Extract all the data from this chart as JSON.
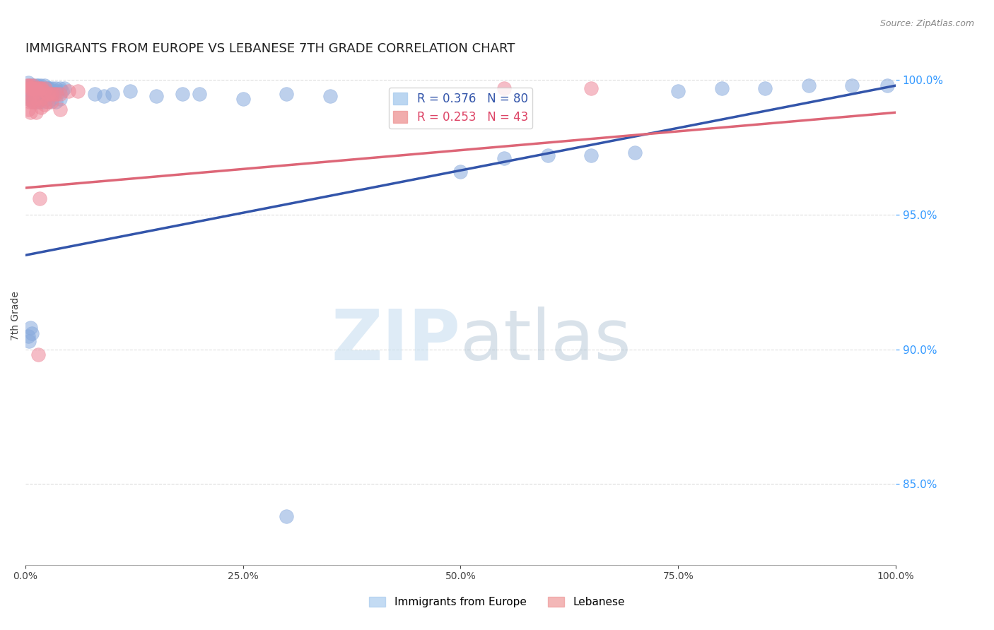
{
  "title": "IMMIGRANTS FROM EUROPE VS LEBANESE 7TH GRADE CORRELATION CHART",
  "source": "Source: ZipAtlas.com",
  "ylabel": "7th Grade",
  "right_yticks": [
    85.0,
    90.0,
    95.0,
    100.0
  ],
  "watermark_zip": "ZIP",
  "watermark_atlas": "atlas",
  "legend": [
    {
      "label": "R = 0.376   N = 80",
      "color": "#6699cc"
    },
    {
      "label": "R = 0.253   N = 43",
      "color": "#e8799a"
    }
  ],
  "blue_scatter": [
    [
      0.002,
      0.997
    ],
    [
      0.003,
      0.999
    ],
    [
      0.005,
      0.998
    ],
    [
      0.004,
      0.997
    ],
    [
      0.006,
      0.997
    ],
    [
      0.007,
      0.998
    ],
    [
      0.008,
      0.997
    ],
    [
      0.009,
      0.996
    ],
    [
      0.01,
      0.998
    ],
    [
      0.011,
      0.997
    ],
    [
      0.012,
      0.996
    ],
    [
      0.013,
      0.998
    ],
    [
      0.014,
      0.997
    ],
    [
      0.015,
      0.998
    ],
    [
      0.016,
      0.996
    ],
    [
      0.017,
      0.997
    ],
    [
      0.018,
      0.998
    ],
    [
      0.019,
      0.997
    ],
    [
      0.02,
      0.996
    ],
    [
      0.021,
      0.997
    ],
    [
      0.022,
      0.998
    ],
    [
      0.023,
      0.996
    ],
    [
      0.024,
      0.995
    ],
    [
      0.025,
      0.997
    ],
    [
      0.026,
      0.997
    ],
    [
      0.027,
      0.996
    ],
    [
      0.028,
      0.997
    ],
    [
      0.03,
      0.996
    ],
    [
      0.031,
      0.997
    ],
    [
      0.032,
      0.996
    ],
    [
      0.035,
      0.997
    ],
    [
      0.036,
      0.996
    ],
    [
      0.04,
      0.997
    ],
    [
      0.042,
      0.996
    ],
    [
      0.045,
      0.997
    ],
    [
      0.002,
      0.994
    ],
    [
      0.003,
      0.993
    ],
    [
      0.005,
      0.994
    ],
    [
      0.006,
      0.993
    ],
    [
      0.007,
      0.993
    ],
    [
      0.008,
      0.992
    ],
    [
      0.009,
      0.993
    ],
    [
      0.01,
      0.994
    ],
    [
      0.011,
      0.993
    ],
    [
      0.012,
      0.992
    ],
    [
      0.015,
      0.993
    ],
    [
      0.016,
      0.992
    ],
    [
      0.018,
      0.993
    ],
    [
      0.02,
      0.992
    ],
    [
      0.025,
      0.993
    ],
    [
      0.027,
      0.992
    ],
    [
      0.03,
      0.993
    ],
    [
      0.035,
      0.992
    ],
    [
      0.04,
      0.993
    ],
    [
      0.08,
      0.995
    ],
    [
      0.09,
      0.994
    ],
    [
      0.1,
      0.995
    ],
    [
      0.12,
      0.996
    ],
    [
      0.15,
      0.994
    ],
    [
      0.18,
      0.995
    ],
    [
      0.2,
      0.995
    ],
    [
      0.25,
      0.993
    ],
    [
      0.3,
      0.995
    ],
    [
      0.35,
      0.994
    ],
    [
      0.5,
      0.966
    ],
    [
      0.55,
      0.971
    ],
    [
      0.6,
      0.972
    ],
    [
      0.65,
      0.972
    ],
    [
      0.7,
      0.973
    ],
    [
      0.75,
      0.996
    ],
    [
      0.8,
      0.997
    ],
    [
      0.85,
      0.997
    ],
    [
      0.9,
      0.998
    ],
    [
      0.95,
      0.998
    ],
    [
      0.99,
      0.998
    ],
    [
      0.3,
      0.838
    ],
    [
      0.003,
      0.905
    ],
    [
      0.004,
      0.903
    ],
    [
      0.006,
      0.908
    ],
    [
      0.007,
      0.906
    ]
  ],
  "pink_scatter": [
    [
      0.002,
      0.998
    ],
    [
      0.003,
      0.998
    ],
    [
      0.004,
      0.997
    ],
    [
      0.005,
      0.997
    ],
    [
      0.006,
      0.998
    ],
    [
      0.007,
      0.997
    ],
    [
      0.008,
      0.997
    ],
    [
      0.009,
      0.998
    ],
    [
      0.01,
      0.997
    ],
    [
      0.012,
      0.997
    ],
    [
      0.014,
      0.996
    ],
    [
      0.015,
      0.997
    ],
    [
      0.017,
      0.997
    ],
    [
      0.019,
      0.997
    ],
    [
      0.021,
      0.996
    ],
    [
      0.023,
      0.997
    ],
    [
      0.025,
      0.995
    ],
    [
      0.027,
      0.995
    ],
    [
      0.03,
      0.995
    ],
    [
      0.033,
      0.995
    ],
    [
      0.036,
      0.995
    ],
    [
      0.04,
      0.995
    ],
    [
      0.05,
      0.996
    ],
    [
      0.06,
      0.996
    ],
    [
      0.003,
      0.993
    ],
    [
      0.005,
      0.992
    ],
    [
      0.007,
      0.993
    ],
    [
      0.009,
      0.992
    ],
    [
      0.012,
      0.993
    ],
    [
      0.015,
      0.992
    ],
    [
      0.018,
      0.993
    ],
    [
      0.022,
      0.991
    ],
    [
      0.025,
      0.992
    ],
    [
      0.03,
      0.992
    ],
    [
      0.018,
      0.99
    ],
    [
      0.003,
      0.989
    ],
    [
      0.006,
      0.988
    ],
    [
      0.012,
      0.988
    ],
    [
      0.04,
      0.989
    ],
    [
      0.016,
      0.956
    ],
    [
      0.015,
      0.898
    ],
    [
      0.55,
      0.997
    ],
    [
      0.65,
      0.997
    ]
  ],
  "blue_line_y_start": 0.935,
  "blue_line_y_end": 0.998,
  "pink_line_y_start": 0.96,
  "pink_line_y_end": 0.988,
  "xlim": [
    0.0,
    1.0
  ],
  "ylim": [
    0.82,
    1.005
  ],
  "bg_color": "#ffffff",
  "grid_color": "#dddddd",
  "blue_dot_color": "#88aadd",
  "pink_dot_color": "#ee8899",
  "blue_line_color": "#3355aa",
  "pink_line_color": "#dd6677",
  "bottom_legend": [
    {
      "label": "Immigrants from Europe",
      "color": "#aaccee"
    },
    {
      "label": "Lebanese",
      "color": "#ee9999"
    }
  ]
}
